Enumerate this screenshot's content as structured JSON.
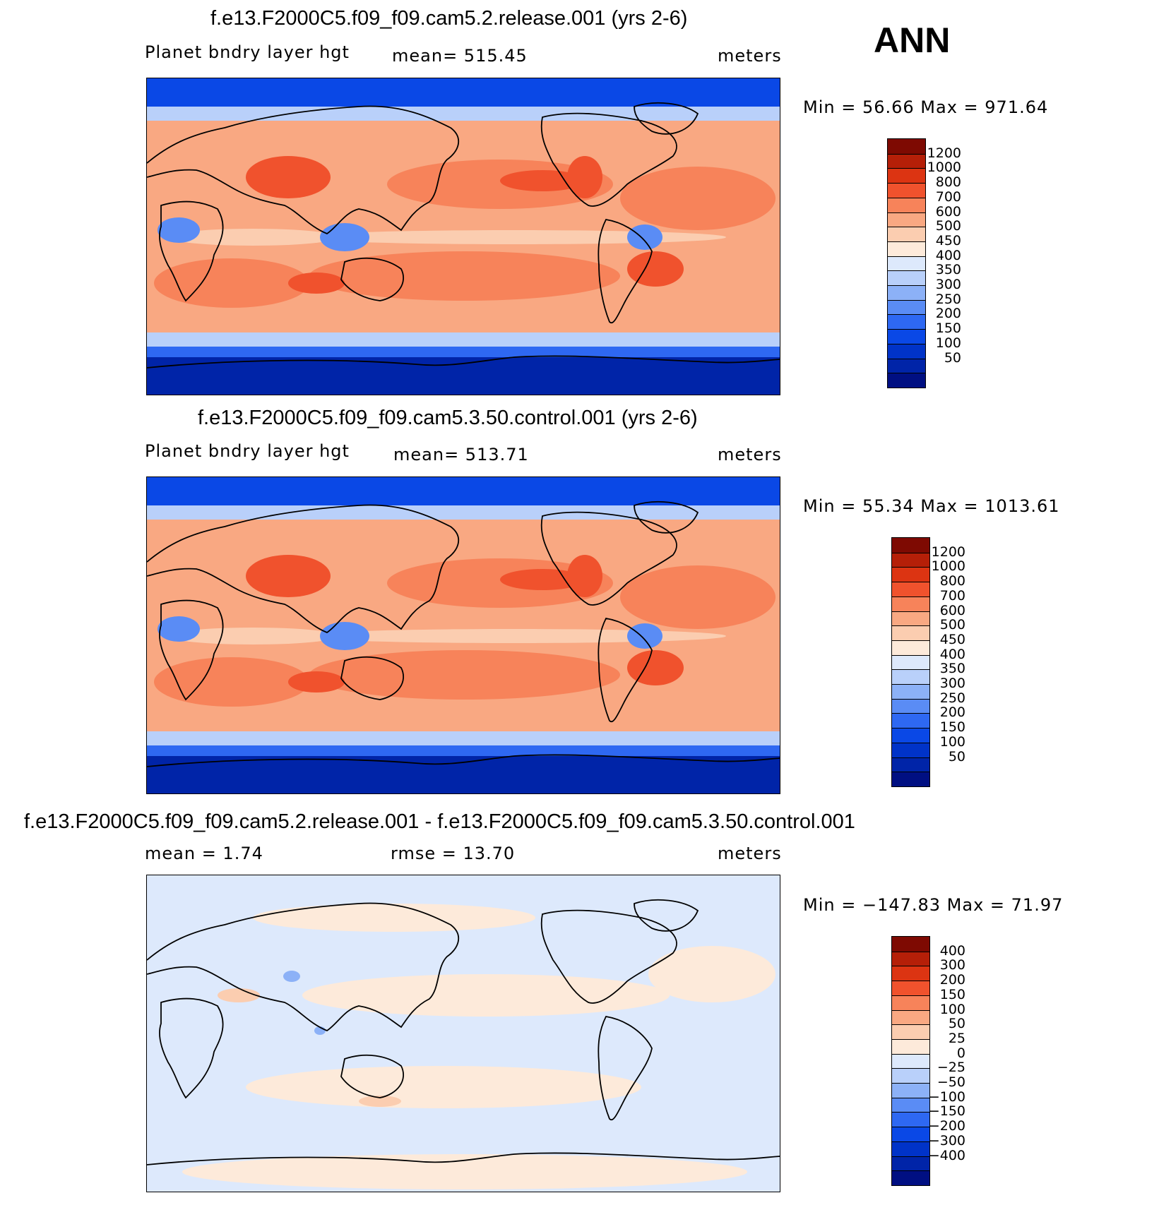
{
  "season_label": "ANN",
  "colors": {
    "seq": [
      "#000f82",
      "#0024a8",
      "#0033c8",
      "#0a48e6",
      "#2e68f2",
      "#5a8cf5",
      "#8cb1f7",
      "#b9d0fa",
      "#dde9fc",
      "#fdeada",
      "#fbcdb0",
      "#f9a882",
      "#f7835a",
      "#f0522d",
      "#dc3412",
      "#b51f08",
      "#7e0a02"
    ],
    "diff": [
      "#000f82",
      "#0024a8",
      "#0033c8",
      "#0a48e6",
      "#2e68f2",
      "#5a8cf5",
      "#8cb1f7",
      "#b9d0fa",
      "#dde9fc",
      "#fdeada",
      "#fbcdb0",
      "#f9a882",
      "#f7835a",
      "#f0522d",
      "#dc3412",
      "#b51f08",
      "#7e0a02"
    ]
  },
  "panels": [
    {
      "title": "f.e13.F2000C5.f09_f09.cam5.2.release.001 (yrs 2-6)",
      "left_label": "Planet bndry layer hgt",
      "center_label": "mean=  515.45",
      "right_label": "meters",
      "stats": "Min =   56.66 Max = 971.64",
      "levels": [
        "1200",
        "1000",
        "800",
        "700",
        "600",
        "500",
        "450",
        "400",
        "350",
        "300",
        "250",
        "200",
        "150",
        "100",
        "50"
      ],
      "kind": "seq"
    },
    {
      "title": "f.e13.F2000C5.f09_f09.cam5.3.50.control.001 (yrs 2-6)",
      "left_label": "Planet bndry layer hgt",
      "center_label": "mean=  513.71",
      "right_label": "meters",
      "stats": "Min =   55.34 Max = 1013.61",
      "levels": [
        "1200",
        "1000",
        "800",
        "700",
        "600",
        "500",
        "450",
        "400",
        "350",
        "300",
        "250",
        "200",
        "150",
        "100",
        "50"
      ],
      "kind": "seq"
    },
    {
      "title": "f.e13.F2000C5.f09_f09.cam5.2.release.001 - f.e13.F2000C5.f09_f09.cam5.3.50.control.001",
      "left_label": "mean =    1.74",
      "center_label": "rmse =   13.70",
      "right_label": "meters",
      "stats": "Min = −147.83 Max =   71.97",
      "levels": [
        "400",
        "300",
        "200",
        "150",
        "100",
        "50",
        "25",
        "0",
        "−25",
        "−50",
        "−100",
        "−150",
        "−200",
        "−300",
        "−400"
      ],
      "kind": "diff"
    }
  ]
}
